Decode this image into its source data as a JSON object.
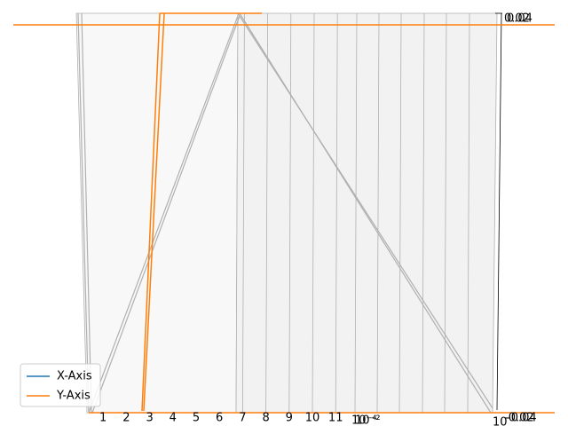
{
  "chart_data": {
    "type": "line3d",
    "series": [
      {
        "name": "X-Axis",
        "color": "#1f77b4"
      },
      {
        "name": "Y-Axis",
        "color": "#ff7f0e"
      }
    ],
    "xticks": [
      1,
      2,
      3,
      4,
      5,
      6,
      7,
      8,
      9,
      10,
      11
    ],
    "log_tick_labels": [
      "10⁻⁴",
      "10⁻²"
    ],
    "z_top_labels": [
      "0.02",
      "0.04"
    ],
    "z_bottom_labels": [
      "-0.02",
      "-0.04"
    ],
    "corner_label": "10",
    "legend": "lower left"
  }
}
